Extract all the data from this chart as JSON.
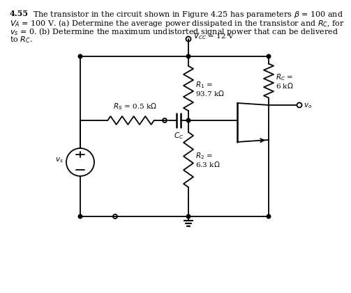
{
  "bg_color": "#ffffff",
  "line_color": "#000000",
  "text_color": "#000000",
  "header_bold": "4.55",
  "header_line1": "  The transistor in the circuit shown in Figure 4.25 has parameters $\\beta$ = 100 and",
  "header_line2": "$V_A$ = 100 V. (a) Determine the average power dissipated in the transistor and $R_C$, for",
  "header_line3": "$v_s$ = 0. (b) Determine the maximum undistorted signal power that can be delivered",
  "header_line4": "to $R_C$.",
  "vcc_text": "$V_{CC}$ = 12 V",
  "r1_line1": "$R_1$ =",
  "r1_line2": "93.7 k$\\Omega$",
  "r2_line1": "$R_2$ =",
  "r2_line2": "6.3 k$\\Omega$",
  "rc_line1": "$R_C$ =",
  "rc_line2": "6 k$\\Omega$",
  "rs_text": "$R_S$ = 0.5 k$\\Omega$",
  "cc_text": "$C_C$",
  "vo_text": "$v_o$",
  "vs_text": "$v_s$",
  "fs_header": 8.0,
  "fs_label": 7.5
}
